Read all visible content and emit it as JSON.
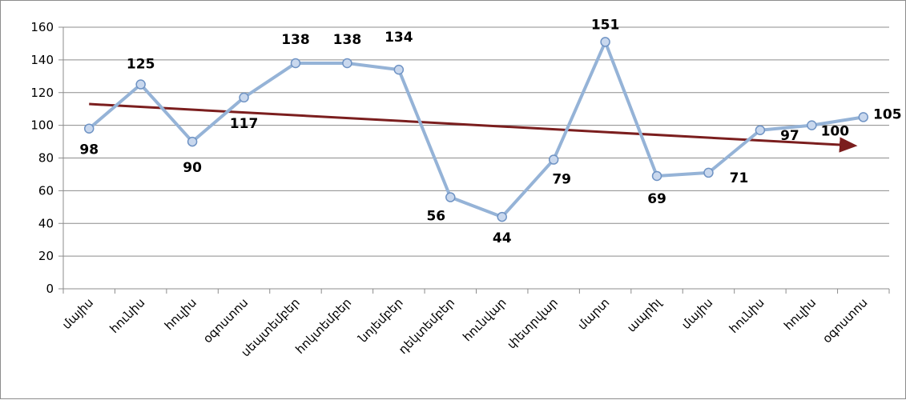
{
  "chart_data": {
    "type": "line",
    "categories": [
      "մայիս",
      "հունիս",
      "հուլիս",
      "օգոստոս",
      "սեպտեմբեր",
      "հոկտեմբեր",
      "նոյեմբեր",
      "դեկտեմբեր",
      "հունվար",
      "փետրվար",
      "մարտ",
      "ապրիլ",
      "մայիս",
      "հունիս",
      "հուլիս",
      "օգոստոս"
    ],
    "series": [
      {
        "values": [
          98,
          125,
          90,
          117,
          138,
          138,
          134,
          56,
          44,
          79,
          151,
          69,
          71,
          97,
          100,
          105
        ],
        "color": "#95b3d7"
      }
    ],
    "data_labels": [
      "98",
      "125",
      "90",
      "117",
      "138",
      "138",
      "134",
      "56",
      "44",
      "79",
      "151",
      "69",
      "71",
      "97",
      "100",
      "105"
    ],
    "trendline": {
      "start": 113,
      "end": 88,
      "color": "#7b1e1e",
      "arrow": true
    },
    "yticks": [
      "0",
      "20",
      "40",
      "60",
      "80",
      "100",
      "120",
      "140",
      "160"
    ],
    "ylim": [
      0,
      160
    ],
    "grid": true,
    "title": "",
    "xlabel": "",
    "ylabel": ""
  }
}
